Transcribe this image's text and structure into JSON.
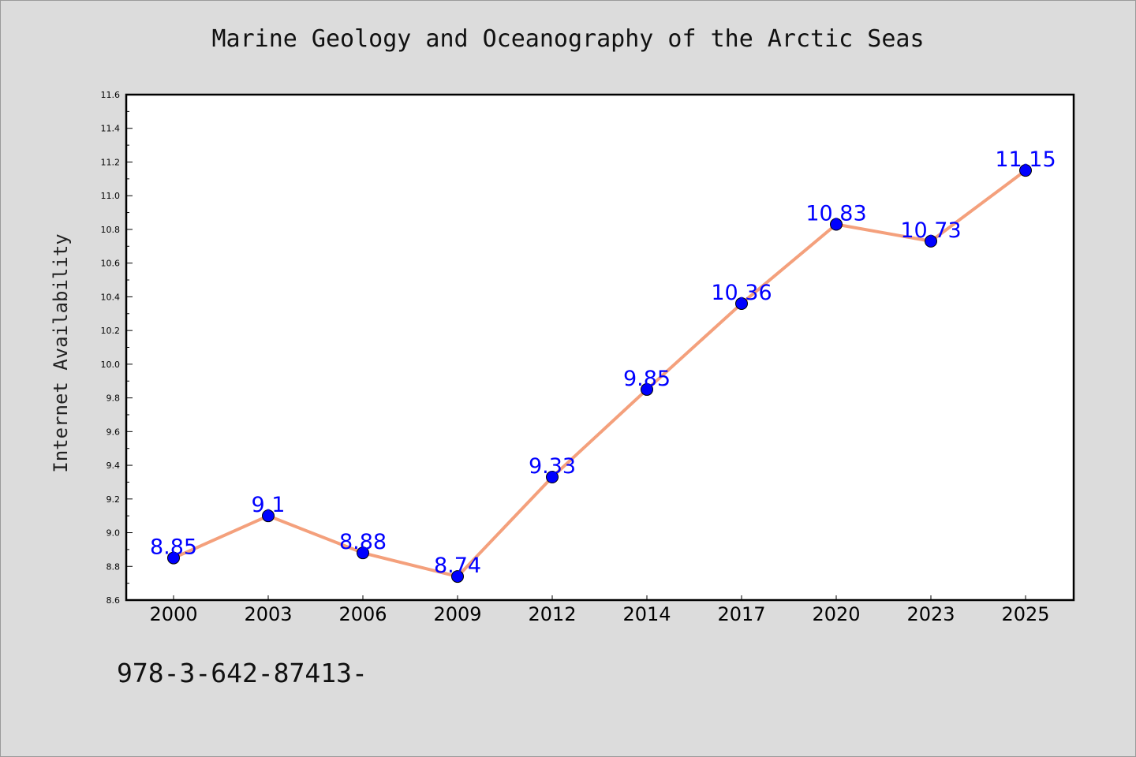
{
  "chart_data": {
    "type": "line",
    "title": "Marine Geology and Oceanography of the Arctic Seas",
    "xlabel": "",
    "ylabel": "Internet Availability",
    "categories": [
      "2000",
      "2003",
      "2006",
      "2009",
      "2012",
      "2014",
      "2017",
      "2020",
      "2023",
      "2025"
    ],
    "series": [
      {
        "values": [
          8.85,
          9.1,
          8.88,
          8.74,
          9.33,
          9.85,
          10.36,
          10.83,
          10.73,
          11.15
        ],
        "labels": [
          "8.85",
          "9.1",
          "8.88",
          "8.74",
          "9.33",
          "9.85",
          "10.36",
          "10.83",
          "10.73",
          "11.15"
        ],
        "line_color": "#f4a07c",
        "marker_color": "#0000ff"
      }
    ],
    "ylim": [
      8.6,
      11.6
    ],
    "yticks": [
      "8.6",
      "8.8",
      "9.0",
      "9.2",
      "9.4",
      "9.6",
      "9.8",
      "10.0",
      "10.2",
      "10.4",
      "10.6",
      "10.8",
      "11.0",
      "11.2",
      "11.4",
      "11.6"
    ],
    "grid": false,
    "legend": "none"
  },
  "footer_text": "978-3-642-87413-",
  "colors": {
    "background": "#dcdcdc",
    "plot_background": "#ffffff",
    "line": "#f4a07c",
    "marker": "#0000ff",
    "data_label": "#0000ff"
  }
}
